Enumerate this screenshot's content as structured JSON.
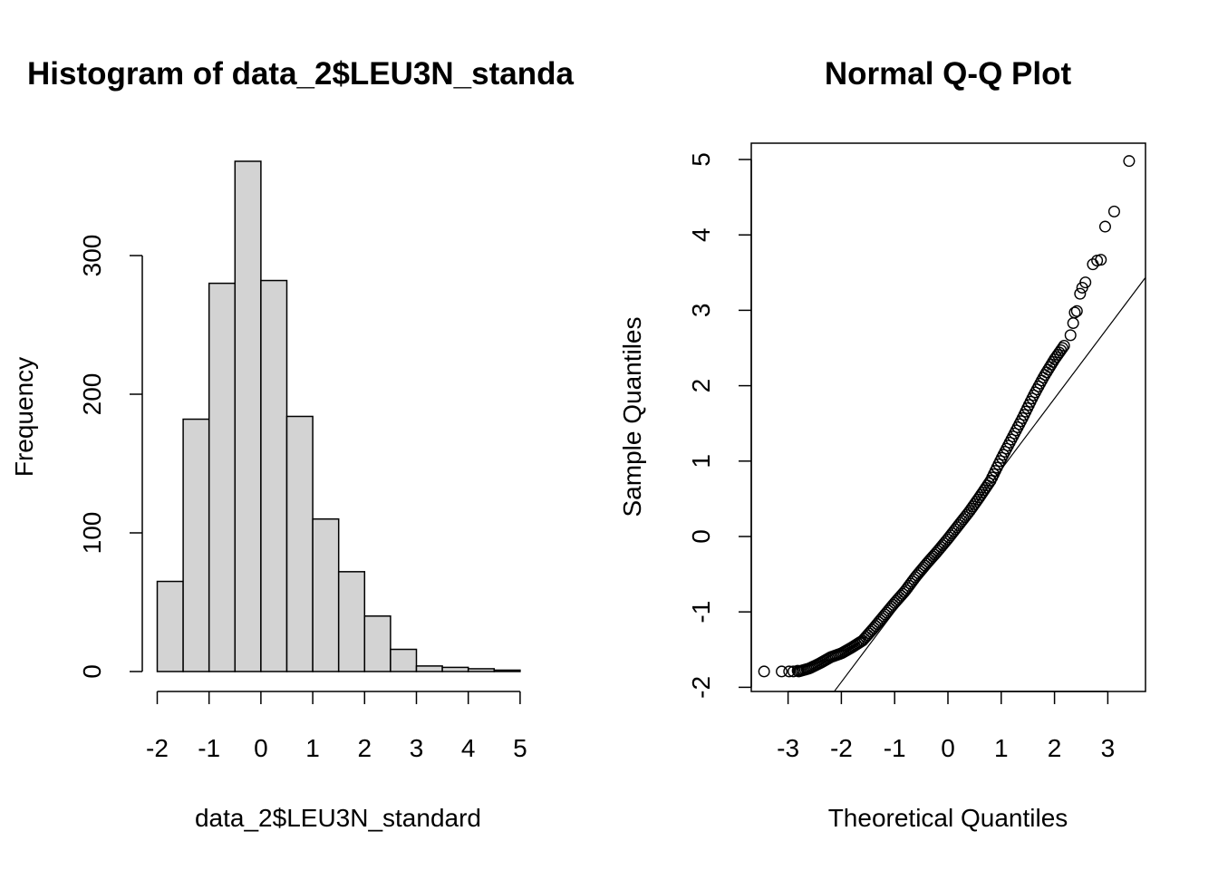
{
  "chart_data": [
    {
      "type": "bar",
      "subtype": "histogram",
      "title": "Histogram of data_2$LEU3N_standa",
      "xlabel": "data_2$LEU3N_standard",
      "ylabel": "Frequency",
      "xlim": [
        -2,
        5
      ],
      "ylim": [
        0,
        370
      ],
      "x_ticks": [
        -2,
        -1,
        0,
        1,
        2,
        3,
        4,
        5
      ],
      "x_tick_labels": [
        "-2",
        "-1",
        "0",
        "1",
        "2",
        "3",
        "4",
        "5"
      ],
      "y_ticks": [
        0,
        100,
        200,
        300
      ],
      "y_tick_labels": [
        "0",
        "100",
        "200",
        "300"
      ],
      "bin_edges": [
        -2,
        -1.5,
        -1,
        -0.5,
        0,
        0.5,
        1,
        1.5,
        2,
        2.5,
        3,
        3.5,
        4,
        4.5,
        5
      ],
      "values": [
        65,
        182,
        280,
        368,
        282,
        184,
        110,
        72,
        40,
        16,
        4,
        3,
        2,
        1
      ],
      "bar_fill": "#d3d3d3",
      "grid": false
    },
    {
      "type": "scatter",
      "subtype": "qq-plot",
      "title": "Normal Q-Q Plot",
      "xlabel": "Theoretical Quantiles",
      "ylabel": "Sample Quantiles",
      "xlim": [
        -3.6,
        3.7
      ],
      "ylim": [
        -2.05,
        5.25
      ],
      "x_ticks": [
        -3,
        -2,
        -1,
        0,
        1,
        2,
        3
      ],
      "x_tick_labels": [
        "-3",
        "-2",
        "-1",
        "0",
        "1",
        "2",
        "3"
      ],
      "y_ticks": [
        -2,
        -1,
        0,
        1,
        2,
        3,
        4,
        5
      ],
      "y_tick_labels": [
        "-2",
        "-1",
        "0",
        "1",
        "2",
        "3",
        "4",
        "5"
      ],
      "curve_points": [
        [
          -2.8,
          -1.79
        ],
        [
          -2.6,
          -1.75
        ],
        [
          -2.4,
          -1.68
        ],
        [
          -2.2,
          -1.6
        ],
        [
          -2.0,
          -1.55
        ],
        [
          -1.8,
          -1.47
        ],
        [
          -1.6,
          -1.38
        ],
        [
          -1.4,
          -1.22
        ],
        [
          -1.2,
          -1.05
        ],
        [
          -1.0,
          -0.88
        ],
        [
          -0.8,
          -0.72
        ],
        [
          -0.6,
          -0.53
        ],
        [
          -0.4,
          -0.36
        ],
        [
          -0.2,
          -0.2
        ],
        [
          0.0,
          -0.03
        ],
        [
          0.2,
          0.15
        ],
        [
          0.4,
          0.33
        ],
        [
          0.6,
          0.53
        ],
        [
          0.8,
          0.74
        ],
        [
          1.0,
          1.03
        ],
        [
          1.2,
          1.3
        ],
        [
          1.4,
          1.57
        ],
        [
          1.6,
          1.86
        ],
        [
          1.8,
          2.12
        ],
        [
          2.0,
          2.35
        ],
        [
          2.2,
          2.55
        ]
      ],
      "extreme_points": [
        [
          -3.45,
          -1.79
        ],
        [
          -3.12,
          -1.79
        ],
        [
          -2.98,
          -1.79
        ],
        [
          -2.9,
          -1.79
        ],
        [
          -2.82,
          -1.78
        ],
        [
          2.3,
          2.67
        ],
        [
          2.35,
          2.83
        ],
        [
          2.38,
          2.97
        ],
        [
          2.42,
          2.99
        ],
        [
          2.48,
          3.22
        ],
        [
          2.52,
          3.3
        ],
        [
          2.58,
          3.37
        ],
        [
          2.72,
          3.61
        ],
        [
          2.8,
          3.66
        ],
        [
          2.87,
          3.67
        ],
        [
          2.95,
          4.11
        ],
        [
          3.12,
          4.31
        ],
        [
          3.4,
          4.98
        ]
      ],
      "reference_line": {
        "intercept": -0.05,
        "slope": 0.94
      },
      "grid": false
    }
  ]
}
